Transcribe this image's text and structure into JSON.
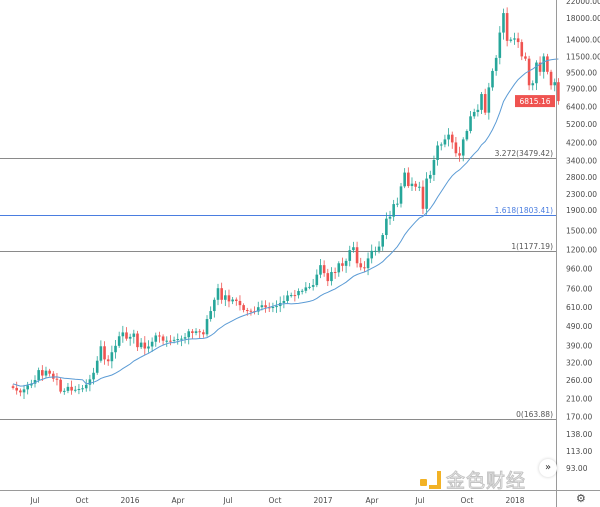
{
  "chart_data": {
    "type": "candlestick",
    "interval": "weekly",
    "scale": "log",
    "ylim": [
      93,
      22000
    ],
    "colors": {
      "up": "#26a69a",
      "down": "#ef5350",
      "moving_average": "#5b9bd5",
      "fib_line": "#8a8a8a",
      "fib_618": "#4a7de0",
      "last_price_bg": "#ef5350"
    },
    "y_ticks": [
      "22000.00",
      "18000.00",
      "14000.00",
      "11500.00",
      "9500.00",
      "7900.00",
      "6400.00",
      "5200.00",
      "4200.00",
      "3400.00",
      "2800.00",
      "2300.00",
      "1900.00",
      "1500.00",
      "1200.00",
      "960.00",
      "760.00",
      "610.00",
      "490.00",
      "390.00",
      "320.00",
      "260.00",
      "210.00",
      "170.00",
      "138.00",
      "113.00",
      "93.00"
    ],
    "x_ticks": [
      "Jul",
      "Oct",
      "2016",
      "Apr",
      "Jul",
      "Oct",
      "2017",
      "Apr",
      "Jul",
      "Oct",
      "2018"
    ],
    "fib_levels": [
      {
        "ratio": 3.272,
        "price": 3479.42,
        "label": "3.272(3479.42)"
      },
      {
        "ratio": 1.618,
        "price": 1803.41,
        "label": "1.618(1803.41)"
      },
      {
        "ratio": 1,
        "price": 1177.19,
        "label": "1(1177.19)"
      },
      {
        "ratio": 0,
        "price": 163.88,
        "label": "0(163.88)"
      }
    ],
    "last_price": "6815.16",
    "first_week": "2015-05-18",
    "close": [
      237,
      230,
      225,
      233,
      244,
      249,
      260,
      292,
      274,
      290,
      280,
      264,
      261,
      227,
      229,
      240,
      230,
      232,
      234,
      236,
      246,
      262,
      283,
      326,
      386,
      331,
      324,
      360,
      388,
      434,
      454,
      422,
      431,
      448,
      382,
      403,
      376,
      385,
      407,
      438,
      433,
      412,
      412,
      411,
      416,
      420,
      422,
      429,
      460,
      451,
      460,
      455,
      444,
      531,
      583,
      665,
      762,
      665,
      701,
      653,
      667,
      656,
      625,
      590,
      585,
      583,
      579,
      610,
      624,
      609,
      604,
      612,
      618,
      641,
      656,
      700,
      703,
      702,
      737,
      739,
      769,
      774,
      790,
      893,
      998,
      909,
      828,
      921,
      917,
      1020,
      990,
      1049,
      1190,
      1231,
      1020,
      973,
      964,
      1080,
      1180,
      1180,
      1240,
      1420,
      1720,
      1760,
      2040,
      2050,
      2510,
      2950,
      2520,
      2590,
      2500,
      2500,
      1930,
      2750,
      2870,
      3420,
      4050,
      4100,
      4350,
      4600,
      4200,
      3700,
      3600,
      4350,
      4800,
      5700,
      6000,
      6150,
      7400,
      5950,
      8000,
      9700,
      11300,
      15200,
      19100,
      13800,
      14000,
      14200,
      13600,
      11500,
      11200,
      8200,
      8400,
      10700,
      9600,
      11500,
      9600,
      8200,
      8500,
      6815.16
    ]
  },
  "watermark": "金色财经",
  "controls": {
    "scroll_right": "»",
    "settings": "⚙"
  }
}
